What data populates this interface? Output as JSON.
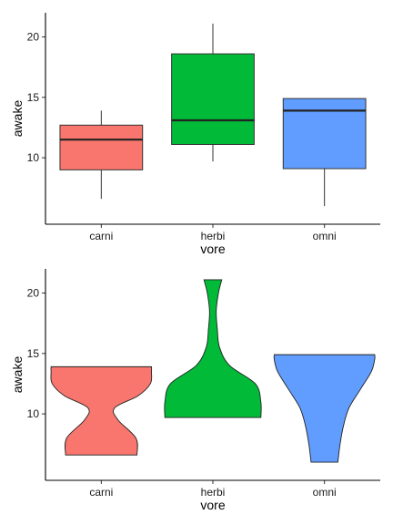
{
  "chart_data": [
    {
      "type": "box",
      "xlabel": "vore",
      "ylabel": "awake",
      "categories": [
        "carni",
        "herbi",
        "omni"
      ],
      "colors": [
        "#F8766D",
        "#00BA38",
        "#619CFF"
      ],
      "ylim": [
        4.5,
        22
      ],
      "yticks": [
        10,
        15,
        20
      ],
      "yticklabels": [
        "10",
        "15",
        "20"
      ],
      "boxes": [
        {
          "category": "carni",
          "min": 6.6,
          "q1": 9.0,
          "median": 11.5,
          "q3": 12.7,
          "max": 13.9
        },
        {
          "category": "herbi",
          "min": 9.7,
          "q1": 11.1,
          "median": 13.1,
          "q3": 18.6,
          "max": 21.1
        },
        {
          "category": "omni",
          "min": 6.0,
          "q1": 9.1,
          "median": 13.9,
          "q3": 14.9,
          "max": 14.9
        }
      ]
    },
    {
      "type": "violin",
      "xlabel": "vore",
      "ylabel": "awake",
      "categories": [
        "carni",
        "herbi",
        "omni"
      ],
      "colors": [
        "#F8766D",
        "#00BA38",
        "#619CFF"
      ],
      "ylim": [
        4.5,
        22
      ],
      "yticks": [
        10,
        15,
        20
      ],
      "yticklabels": [
        "10",
        "15",
        "20"
      ],
      "violins": [
        {
          "category": "carni",
          "y": [
            6.6,
            8.0,
            9.5,
            10.5,
            11.5,
            12.5,
            13.5,
            13.9
          ],
          "halfwidth": [
            0.32,
            0.31,
            0.15,
            0.12,
            0.33,
            0.44,
            0.45,
            0.45
          ]
        },
        {
          "category": "herbi",
          "y": [
            9.7,
            11.0,
            12.5,
            14.0,
            15.5,
            17.0,
            18.5,
            20.0,
            21.1
          ],
          "halfwidth": [
            0.43,
            0.43,
            0.38,
            0.15,
            0.06,
            0.04,
            0.03,
            0.05,
            0.08
          ]
        },
        {
          "category": "omni",
          "y": [
            6.0,
            7.5,
            9.0,
            10.5,
            12.0,
            13.5,
            14.5,
            14.9
          ],
          "halfwidth": [
            0.12,
            0.14,
            0.17,
            0.22,
            0.32,
            0.42,
            0.45,
            0.45
          ]
        }
      ]
    }
  ]
}
